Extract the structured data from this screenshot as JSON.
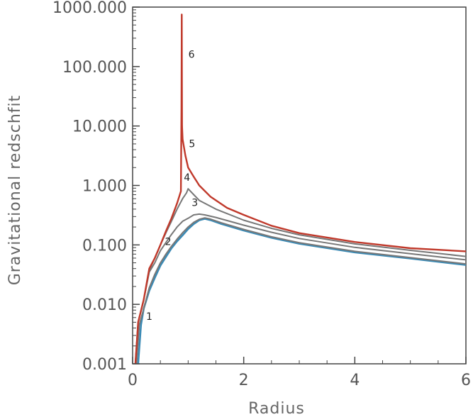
{
  "chart_data": {
    "type": "line",
    "title": "",
    "xlabel": "Radius",
    "ylabel": "Gravitational redschfit",
    "xlim": [
      0,
      6
    ],
    "ylim": [
      0.001,
      1000
    ],
    "yscale": "log",
    "grid": false,
    "legend": "none",
    "xticks": [
      {
        "value": 0,
        "label": "0"
      },
      {
        "value": 2,
        "label": "2"
      },
      {
        "value": 4,
        "label": "4"
      },
      {
        "value": 6,
        "label": "6"
      }
    ],
    "yticks": [
      {
        "value": 0.001,
        "label": "0.001"
      },
      {
        "value": 0.01,
        "label": "0.010"
      },
      {
        "value": 0.1,
        "label": "0.100"
      },
      {
        "value": 1,
        "label": "1.000"
      },
      {
        "value": 10,
        "label": "10.000"
      },
      {
        "value": 100,
        "label": "100.000"
      },
      {
        "value": 1000,
        "label": "1000.000"
      }
    ],
    "series": [
      {
        "color": "#3a8ab5",
        "width": 2.6,
        "points": [
          [
            0.1,
            0.001
          ],
          [
            0.15,
            0.0045
          ],
          [
            0.2,
            0.0085
          ],
          [
            0.3,
            0.017
          ],
          [
            0.4,
            0.028
          ],
          [
            0.5,
            0.045
          ],
          [
            0.6,
            0.063
          ],
          [
            0.7,
            0.088
          ],
          [
            0.8,
            0.115
          ],
          [
            0.9,
            0.145
          ],
          [
            1.0,
            0.185
          ],
          [
            1.1,
            0.225
          ],
          [
            1.2,
            0.26
          ],
          [
            1.3,
            0.275
          ],
          [
            1.4,
            0.262
          ],
          [
            1.6,
            0.225
          ],
          [
            2.0,
            0.175
          ],
          [
            2.5,
            0.132
          ],
          [
            3.0,
            0.105
          ],
          [
            4.0,
            0.075
          ],
          [
            5.0,
            0.059
          ],
          [
            6.0,
            0.046
          ]
        ]
      },
      {
        "color": "#777777",
        "width": 2,
        "points": [
          [
            0.07,
            0.001
          ],
          [
            0.12,
            0.0045
          ],
          [
            0.2,
            0.0085
          ],
          [
            0.3,
            0.019
          ],
          [
            0.4,
            0.032
          ],
          [
            0.5,
            0.05
          ],
          [
            0.6,
            0.07
          ],
          [
            0.7,
            0.095
          ],
          [
            0.8,
            0.125
          ],
          [
            0.9,
            0.16
          ],
          [
            1.0,
            0.2
          ],
          [
            1.1,
            0.24
          ],
          [
            1.2,
            0.27
          ],
          [
            1.3,
            0.285
          ],
          [
            1.4,
            0.272
          ],
          [
            1.6,
            0.235
          ],
          [
            2.0,
            0.182
          ],
          [
            2.5,
            0.137
          ],
          [
            3.0,
            0.109
          ],
          [
            4.0,
            0.078
          ],
          [
            5.0,
            0.061
          ],
          [
            6.0,
            0.048
          ]
        ]
      },
      {
        "color": "#777777",
        "width": 2,
        "points": [
          [
            0.05,
            0.001
          ],
          [
            0.1,
            0.005
          ],
          [
            0.2,
            0.012
          ],
          [
            0.3,
            0.035
          ],
          [
            0.4,
            0.05
          ],
          [
            0.5,
            0.08
          ],
          [
            0.6,
            0.11
          ],
          [
            0.7,
            0.15
          ],
          [
            0.8,
            0.2
          ],
          [
            0.9,
            0.25
          ],
          [
            1.0,
            0.28
          ],
          [
            1.1,
            0.32
          ],
          [
            1.2,
            0.33
          ],
          [
            1.3,
            0.32
          ],
          [
            1.5,
            0.29
          ],
          [
            2.0,
            0.215
          ],
          [
            2.5,
            0.163
          ],
          [
            3.0,
            0.128
          ],
          [
            4.0,
            0.091
          ],
          [
            5.0,
            0.071
          ],
          [
            6.0,
            0.056
          ]
        ]
      },
      {
        "color": "#777777",
        "width": 2,
        "points": [
          [
            0.05,
            0.001
          ],
          [
            0.1,
            0.005
          ],
          [
            0.2,
            0.012
          ],
          [
            0.3,
            0.037
          ],
          [
            0.4,
            0.06
          ],
          [
            0.5,
            0.1
          ],
          [
            0.6,
            0.16
          ],
          [
            0.7,
            0.25
          ],
          [
            0.8,
            0.4
          ],
          [
            0.9,
            0.6
          ],
          [
            0.97,
            0.75
          ],
          [
            1.0,
            0.88
          ],
          [
            1.1,
            0.7
          ],
          [
            1.2,
            0.56
          ],
          [
            1.5,
            0.4
          ],
          [
            2.0,
            0.26
          ],
          [
            2.5,
            0.19
          ],
          [
            3.0,
            0.148
          ],
          [
            4.0,
            0.104
          ],
          [
            5.0,
            0.081
          ],
          [
            6.0,
            0.064
          ]
        ]
      },
      {
        "color": "#c0392b",
        "width": 2.4,
        "points": [
          [
            0.05,
            0.001
          ],
          [
            0.1,
            0.005
          ],
          [
            0.2,
            0.012
          ],
          [
            0.3,
            0.04
          ],
          [
            0.4,
            0.06
          ],
          [
            0.5,
            0.1
          ],
          [
            0.6,
            0.17
          ],
          [
            0.7,
            0.28
          ],
          [
            0.8,
            0.5
          ],
          [
            0.87,
            0.8
          ],
          [
            0.88,
            20
          ],
          [
            0.885,
            750
          ],
          [
            0.89,
            10
          ],
          [
            0.9,
            6
          ],
          [
            0.95,
            3.2
          ],
          [
            1.0,
            2.0
          ],
          [
            1.1,
            1.4
          ],
          [
            1.2,
            1.0
          ],
          [
            1.4,
            0.65
          ],
          [
            1.7,
            0.42
          ],
          [
            2.0,
            0.32
          ],
          [
            2.5,
            0.21
          ],
          [
            3.0,
            0.158
          ],
          [
            4.0,
            0.112
          ],
          [
            5.0,
            0.088
          ],
          [
            6.0,
            0.078
          ]
        ]
      }
    ],
    "curve_labels": [
      {
        "text": "1",
        "x": 0.3,
        "y": 0.0055,
        "size": 24
      },
      {
        "text": "2",
        "x": 0.64,
        "y": 0.1,
        "size": 15
      },
      {
        "text": "3",
        "x": 1.12,
        "y": 0.45,
        "size": 15
      },
      {
        "text": "4",
        "x": 0.98,
        "y": 1.2,
        "size": 15
      },
      {
        "text": "5",
        "x": 1.07,
        "y": 4.4,
        "size": 15
      },
      {
        "text": "6",
        "x": 1.06,
        "y": 140,
        "size": 15
      }
    ]
  }
}
